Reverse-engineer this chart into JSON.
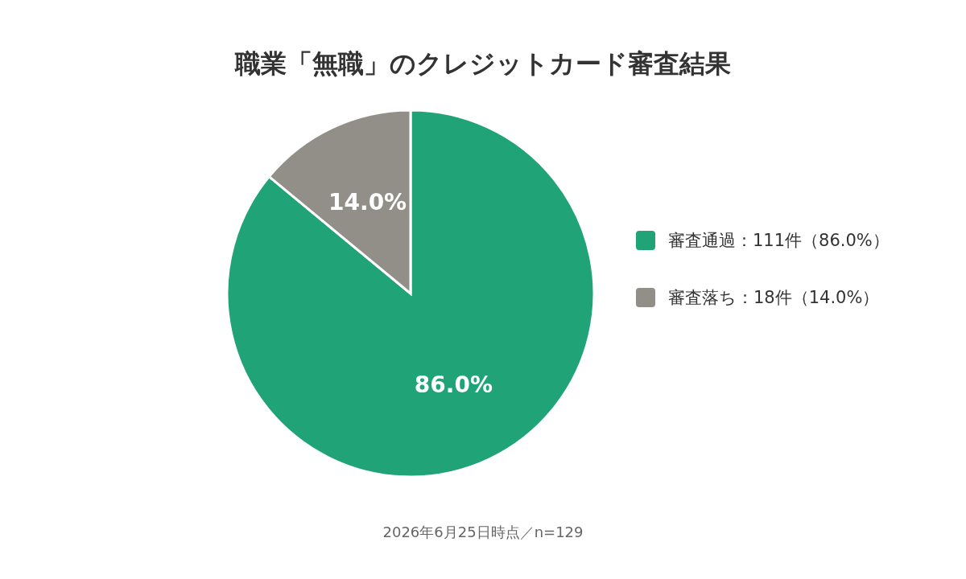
{
  "chart_data": {
    "type": "pie",
    "title": "職業「無職」のクレジットカード審査結果",
    "categories": [
      "審査通過：111件（86.0%）",
      "審査落ち：18件（14.0%）"
    ],
    "values": [
      86.0,
      14.0
    ],
    "value_labels": [
      "86.0%",
      "14.0%"
    ],
    "colors": [
      "#21a378",
      "#918f87"
    ],
    "legend": "right",
    "annotations": [
      "2026年6月25日時点／n=129"
    ]
  }
}
